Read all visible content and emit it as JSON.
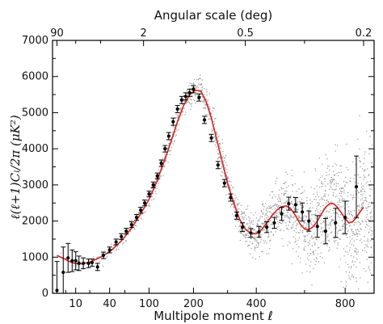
{
  "chart_data": {
    "type": "scatter",
    "title": "",
    "xlabel": "Multipole moment ℓ",
    "ylabel": "ℓ(ℓ+1)Cₗ/2π (μK²)",
    "top_axis_label": "Angular scale (deg)",
    "x_scale": "sqrt-like (nonlinear)",
    "ylim": [
      0,
      7000
    ],
    "yticks": [
      "0",
      "1000",
      "2000",
      "3000",
      "4000",
      "5000",
      "6000",
      "7000"
    ],
    "xticks": [
      {
        "label": "10",
        "value": 10
      },
      {
        "label": "40",
        "value": 40
      },
      {
        "label": "100",
        "value": 100
      },
      {
        "label": "200",
        "value": 200
      },
      {
        "label": "400",
        "value": 400
      },
      {
        "label": "800",
        "value": 800
      }
    ],
    "top_ticks": [
      {
        "label": "90",
        "value": 2
      },
      {
        "label": "2",
        "value": 90
      },
      {
        "label": "0.5",
        "value": 360
      },
      {
        "label": "0.2",
        "value": 900
      }
    ],
    "colors": {
      "model": "#d62020",
      "binned": "#000000",
      "scatter": "#9a9a9a"
    },
    "series": [
      {
        "type": "line",
        "x": [
          2,
          4,
          6,
          8,
          10,
          14,
          20,
          30,
          40,
          55,
          70,
          85,
          100,
          115,
          130,
          145,
          160,
          175,
          190,
          205,
          220,
          235,
          250,
          265,
          280,
          300,
          320,
          340,
          360,
          380,
          400,
          420,
          440,
          460,
          480,
          500,
          520,
          540,
          560,
          580,
          600,
          620,
          640,
          660,
          680,
          700,
          720,
          740,
          760,
          780,
          800,
          820,
          840,
          860,
          880,
          900
        ],
        "y": [
          1050,
          970,
          900,
          850,
          820,
          820,
          860,
          1000,
          1150,
          1450,
          1800,
          2200,
          2600,
          3100,
          3650,
          4200,
          4750,
          5200,
          5500,
          5620,
          5600,
          5300,
          4850,
          4300,
          3750,
          3050,
          2500,
          2050,
          1780,
          1650,
          1650,
          1760,
          1950,
          2150,
          2300,
          2400,
          2420,
          2330,
          2150,
          1920,
          1780,
          1760,
          1840,
          2000,
          2200,
          2380,
          2480,
          2480,
          2380,
          2230,
          2060,
          1950,
          1980,
          2100,
          2250,
          2380
        ]
      },
      {
        "type": "errorbar",
        "x": [
          2,
          4,
          6,
          8,
          10,
          12,
          15,
          19,
          22,
          27,
          33,
          40,
          48,
          55,
          62,
          70,
          78,
          85,
          92,
          100,
          108,
          116,
          124,
          132,
          140,
          150,
          160,
          170,
          180,
          190,
          200,
          215,
          230,
          250,
          270,
          290,
          310,
          330,
          350,
          380,
          410,
          440,
          470,
          500,
          530,
          560,
          590,
          620,
          660,
          700,
          750,
          800,
          860
        ],
        "y": [
          80,
          580,
          980,
          900,
          900,
          830,
          830,
          830,
          850,
          730,
          1050,
          1200,
          1420,
          1570,
          1720,
          1900,
          2100,
          2300,
          2500,
          2750,
          3000,
          3250,
          3600,
          4000,
          4350,
          4750,
          5100,
          5350,
          5450,
          5550,
          5650,
          5420,
          4800,
          4300,
          3550,
          3050,
          2650,
          2150,
          1830,
          1670,
          1700,
          1830,
          1950,
          2200,
          2480,
          2450,
          2250,
          2000,
          1850,
          1720,
          1950,
          2100,
          2950
        ],
        "err": [
          800,
          700,
          400,
          300,
          250,
          200,
          150,
          120,
          100,
          100,
          90,
          80,
          80,
          80,
          80,
          80,
          80,
          80,
          80,
          80,
          80,
          80,
          90,
          90,
          100,
          100,
          100,
          100,
          100,
          100,
          100,
          100,
          100,
          100,
          100,
          100,
          100,
          100,
          120,
          120,
          150,
          150,
          150,
          180,
          180,
          200,
          250,
          280,
          300,
          350,
          400,
          450,
          850
        ]
      }
    ]
  }
}
